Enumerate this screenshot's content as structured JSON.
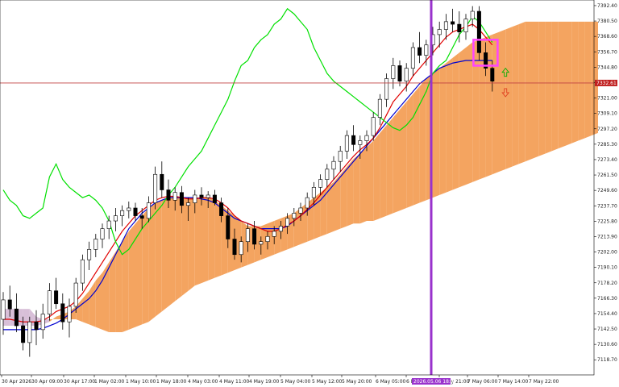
{
  "chart_data": {
    "type": "candlestick",
    "title": "",
    "xlabel": "",
    "ylabel": "",
    "ylim": [
      7112.0,
      7393.0
    ],
    "grid": false,
    "y_ticks": [
      "7392.40",
      "7380.50",
      "7368.60",
      "7356.70",
      "7344.80",
      "7333.00",
      "7321.00",
      "7309.10",
      "7297.20",
      "7285.30",
      "7273.40",
      "7261.50",
      "7249.60",
      "7237.70",
      "7225.80",
      "7213.90",
      "7202.00",
      "7190.10",
      "7178.20",
      "7166.30",
      "7154.40",
      "7142.50",
      "7130.60",
      "7118.70"
    ],
    "x_ticks": [
      "30 Apr 2026",
      "30 Apr 09:00",
      "30 Apr 17:00",
      "1 May 02:00",
      "1 May 10:00",
      "1 May 18:00",
      "4 May 03:00",
      "4 May 11:00",
      "4 May 19:00",
      "5 May 04:00",
      "5 May 12:00",
      "5 May 20:00",
      "6 May 05:00",
      "6 May 13:00",
      "6 May 21:00",
      "7 May 06:00",
      "7 May 14:00",
      "7 May 22:00"
    ],
    "current_price": "7332.61",
    "cursor_date": "2026.05.06 18:00",
    "colors": {
      "tenkan": "#e00000",
      "kijun": "#0000d0",
      "chikou": "#00e000",
      "kumo_bull": "#f4a460",
      "kumo_bear": "#d8bfd8",
      "cursor_line": "#9932cc",
      "price_line": "#c04040",
      "highlight_box": "#ff44ff"
    },
    "candles": [
      [
        7150,
        7171,
        7138,
        7165
      ],
      [
        7165,
        7176,
        7152,
        7158
      ],
      [
        7158,
        7170,
        7140,
        7145
      ],
      [
        7145,
        7152,
        7126,
        7132
      ],
      [
        7132,
        7152,
        7121,
        7148
      ],
      [
        7148,
        7157,
        7130,
        7142
      ],
      [
        7142,
        7162,
        7135,
        7154
      ],
      [
        7154,
        7178,
        7149,
        7172
      ],
      [
        7172,
        7182,
        7158,
        7162
      ],
      [
        7162,
        7170,
        7142,
        7148
      ],
      [
        7148,
        7166,
        7136,
        7160
      ],
      [
        7160,
        7182,
        7155,
        7178
      ],
      [
        7178,
        7200,
        7172,
        7196
      ],
      [
        7196,
        7210,
        7188,
        7204
      ],
      [
        7204,
        7216,
        7198,
        7212
      ],
      [
        7212,
        7224,
        7205,
        7220
      ],
      [
        7220,
        7230,
        7212,
        7226
      ],
      [
        7226,
        7236,
        7218,
        7230
      ],
      [
        7230,
        7238,
        7222,
        7234
      ],
      [
        7234,
        7241,
        7228,
        7236
      ],
      [
        7236,
        7240,
        7226,
        7230
      ],
      [
        7230,
        7236,
        7220,
        7228
      ],
      [
        7228,
        7245,
        7225,
        7240
      ],
      [
        7240,
        7268,
        7235,
        7262
      ],
      [
        7262,
        7272,
        7244,
        7250
      ],
      [
        7250,
        7258,
        7236,
        7242
      ],
      [
        7242,
        7252,
        7234,
        7248
      ],
      [
        7248,
        7253,
        7232,
        7238
      ],
      [
        7238,
        7244,
        7226,
        7240
      ],
      [
        7240,
        7250,
        7232,
        7246
      ],
      [
        7246,
        7252,
        7238,
        7244
      ],
      [
        7244,
        7249,
        7236,
        7246
      ],
      [
        7246,
        7250,
        7238,
        7240
      ],
      [
        7240,
        7244,
        7225,
        7230
      ],
      [
        7230,
        7236,
        7205,
        7212
      ],
      [
        7212,
        7220,
        7196,
        7200
      ],
      [
        7200,
        7214,
        7194,
        7210
      ],
      [
        7210,
        7224,
        7202,
        7220
      ],
      [
        7220,
        7226,
        7204,
        7208
      ],
      [
        7208,
        7214,
        7200,
        7210
      ],
      [
        7210,
        7218,
        7204,
        7214
      ],
      [
        7214,
        7222,
        7208,
        7218
      ],
      [
        7218,
        7226,
        7212,
        7222
      ],
      [
        7222,
        7232,
        7216,
        7228
      ],
      [
        7228,
        7236,
        7222,
        7232
      ],
      [
        7232,
        7240,
        7226,
        7236
      ],
      [
        7236,
        7248,
        7230,
        7244
      ],
      [
        7244,
        7256,
        7238,
        7252
      ],
      [
        7252,
        7262,
        7246,
        7258
      ],
      [
        7258,
        7270,
        7252,
        7266
      ],
      [
        7266,
        7276,
        7258,
        7272
      ],
      [
        7272,
        7284,
        7264,
        7280
      ],
      [
        7280,
        7296,
        7274,
        7292
      ],
      [
        7292,
        7300,
        7280,
        7285
      ],
      [
        7285,
        7292,
        7274,
        7288
      ],
      [
        7288,
        7296,
        7280,
        7292
      ],
      [
        7292,
        7310,
        7288,
        7306
      ],
      [
        7306,
        7324,
        7300,
        7320
      ],
      [
        7320,
        7340,
        7314,
        7336
      ],
      [
        7336,
        7352,
        7328,
        7346
      ],
      [
        7346,
        7350,
        7330,
        7334
      ],
      [
        7334,
        7348,
        7326,
        7344
      ],
      [
        7344,
        7364,
        7338,
        7360
      ],
      [
        7360,
        7372,
        7348,
        7354
      ],
      [
        7354,
        7366,
        7346,
        7362
      ],
      [
        7362,
        7376,
        7354,
        7370
      ],
      [
        7370,
        7380,
        7360,
        7374
      ],
      [
        7374,
        7386,
        7366,
        7380
      ],
      [
        7380,
        7390,
        7372,
        7378
      ],
      [
        7378,
        7388,
        7364,
        7372
      ],
      [
        7372,
        7386,
        7366,
        7382
      ],
      [
        7382,
        7392,
        7376,
        7388
      ],
      [
        7388,
        7392,
        7350,
        7356
      ],
      [
        7356,
        7364,
        7338,
        7344
      ],
      [
        7344,
        7350,
        7326,
        7334
      ]
    ],
    "tenkan_sen": [
      7150,
      7150,
      7149,
      7148,
      7148,
      7148,
      7149,
      7152,
      7156,
      7158,
      7160,
      7164,
      7170,
      7178,
      7186,
      7194,
      7202,
      7210,
      7218,
      7224,
      7230,
      7234,
      7238,
      7242,
      7244,
      7245,
      7245,
      7244,
      7243,
      7243,
      7244,
      7244,
      7243,
      7240,
      7236,
      7230,
      7226,
      7224,
      7222,
      7220,
      7218,
      7218,
      7220,
      7223,
      7226,
      7230,
      7235,
      7240,
      7246,
      7252,
      7258,
      7264,
      7270,
      7276,
      7281,
      7285,
      7290,
      7298,
      7308,
      7318,
      7324,
      7330,
      7338,
      7344,
      7350,
      7356,
      7362,
      7368,
      7372,
      7374,
      7376,
      7378,
      7374,
      7368,
      7362
    ],
    "kijun_sen": [
      7142,
      7142,
      7142,
      7142,
      7142,
      7142,
      7143,
      7145,
      7147,
      7150,
      7154,
      7158,
      7162,
      7166,
      7172,
      7180,
      7190,
      7200,
      7210,
      7220,
      7226,
      7232,
      7236,
      7240,
      7242,
      7244,
      7244,
      7244,
      7244,
      7244,
      7243,
      7242,
      7240,
      7236,
      7232,
      7228,
      7226,
      7224,
      7222,
      7220,
      7220,
      7220,
      7220,
      7222,
      7226,
      7230,
      7234,
      7238,
      7242,
      7248,
      7254,
      7260,
      7266,
      7272,
      7278,
      7284,
      7290,
      7296,
      7302,
      7308,
      7314,
      7320,
      7326,
      7332,
      7336,
      7340,
      7344,
      7346,
      7348,
      7349,
      7350,
      7350,
      7350,
      7350,
      7350
    ],
    "chikou_span": [
      7250,
      7242,
      7238,
      7230,
      7228,
      7232,
      7236,
      7260,
      7270,
      7258,
      7252,
      7248,
      7244,
      7246,
      7242,
      7236,
      7226,
      7210,
      7200,
      7204,
      7212,
      7220,
      7226,
      7232,
      7238,
      7246,
      7252,
      7260,
      7268,
      7274,
      7280,
      7290,
      7300,
      7310,
      7320,
      7334,
      7346,
      7350,
      7360,
      7366,
      7370,
      7378,
      7382,
      7390,
      7386,
      7380,
      7374,
      7360,
      7350,
      7340,
      7334,
      7330,
      7326,
      7322,
      7318,
      7314,
      7310,
      7306,
      7302,
      7298,
      7296,
      7300,
      7306,
      7316,
      7326,
      7340,
      7346,
      7350,
      7360,
      7370,
      7376,
      7384,
      7380,
      7372,
      7364
    ],
    "senkou_span_a": [
      7145,
      7145,
      7145,
      7145,
      7145,
      7145,
      7146,
      7148,
      7152,
      7154,
      7156,
      7160,
      7166,
      7172,
      7180,
      7186,
      7194,
      7202,
      7210,
      7218,
      7224,
      7230,
      7236,
      7240,
      7242,
      7244,
      7244,
      7244,
      7244,
      7244,
      7244,
      7244,
      7242,
      7238,
      7234,
      7230,
      7226,
      7222,
      7222,
      7222,
      7224,
      7226,
      7228,
      7230,
      7232,
      7236,
      7240,
      7244,
      7248,
      7252,
      7256,
      7262,
      7268,
      7274,
      7278,
      7283,
      7288,
      7294,
      7300,
      7306,
      7312,
      7318,
      7324,
      7330,
      7336,
      7340,
      7344,
      7348,
      7352,
      7356,
      7360,
      7364,
      7366,
      7368,
      7370,
      7372,
      7374,
      7376,
      7378,
      7380,
      7380,
      7380,
      7380,
      7380,
      7380,
      7380,
      7380,
      7380,
      7380,
      7380,
      7380,
      7380,
      7380,
      7380,
      7380,
      7380,
      7380,
      7380,
      7380,
      7380,
      7380
    ],
    "senkou_span_b": [
      7158,
      7158,
      7158,
      7158,
      7158,
      7152,
      7150,
      7150,
      7150,
      7150,
      7150,
      7150,
      7148,
      7146,
      7144,
      7142,
      7140,
      7140,
      7140,
      7142,
      7144,
      7146,
      7148,
      7152,
      7156,
      7160,
      7164,
      7168,
      7172,
      7176,
      7178,
      7180,
      7182,
      7184,
      7186,
      7188,
      7190,
      7192,
      7194,
      7196,
      7198,
      7200,
      7202,
      7204,
      7206,
      7208,
      7210,
      7212,
      7214,
      7216,
      7218,
      7220,
      7222,
      7224,
      7224,
      7226,
      7226,
      7228,
      7230,
      7232,
      7234,
      7236,
      7238,
      7240,
      7242,
      7244,
      7246,
      7248,
      7250,
      7252,
      7254,
      7256,
      7258,
      7260,
      7262,
      7264,
      7266,
      7268,
      7270,
      7272,
      7274,
      7276,
      7278,
      7280,
      7282,
      7284,
      7286,
      7288,
      7290,
      7292,
      7294,
      7296,
      7298,
      7300,
      7302,
      7304,
      7306,
      7308,
      7310,
      7312,
      7314
    ]
  }
}
